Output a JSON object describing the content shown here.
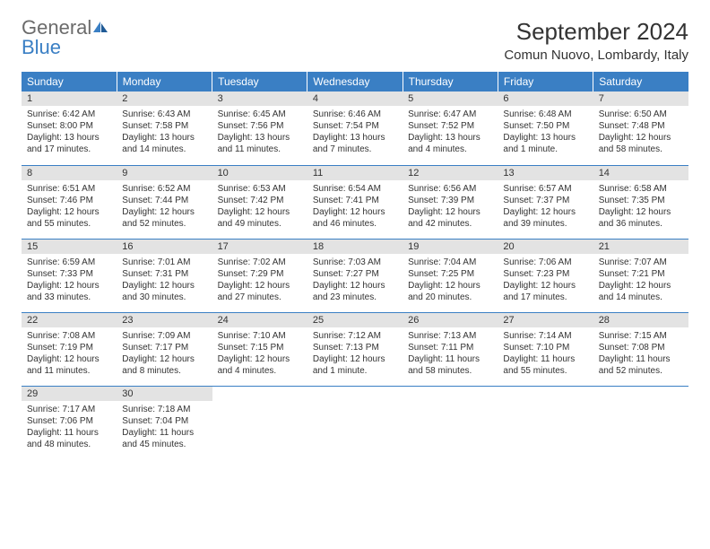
{
  "brand": {
    "general": "General",
    "blue": "Blue"
  },
  "title": "September 2024",
  "location": "Comun Nuovo, Lombardy, Italy",
  "colors": {
    "header_bg": "#3a7fc4",
    "header_text": "#ffffff",
    "daynum_bg": "#e3e3e3",
    "row_divider": "#3a7fc4",
    "body_text": "#333333",
    "logo_gray": "#6b6b6b",
    "logo_blue": "#3a7fc4",
    "page_bg": "#ffffff"
  },
  "typography": {
    "title_fontsize": 26,
    "location_fontsize": 15,
    "header_fontsize": 12,
    "daynum_fontsize": 11,
    "cell_fontsize": 10
  },
  "weekdays": [
    "Sunday",
    "Monday",
    "Tuesday",
    "Wednesday",
    "Thursday",
    "Friday",
    "Saturday"
  ],
  "weeks": [
    [
      {
        "n": "1",
        "sr": "Sunrise: 6:42 AM",
        "ss": "Sunset: 8:00 PM",
        "d1": "Daylight: 13 hours",
        "d2": "and 17 minutes."
      },
      {
        "n": "2",
        "sr": "Sunrise: 6:43 AM",
        "ss": "Sunset: 7:58 PM",
        "d1": "Daylight: 13 hours",
        "d2": "and 14 minutes."
      },
      {
        "n": "3",
        "sr": "Sunrise: 6:45 AM",
        "ss": "Sunset: 7:56 PM",
        "d1": "Daylight: 13 hours",
        "d2": "and 11 minutes."
      },
      {
        "n": "4",
        "sr": "Sunrise: 6:46 AM",
        "ss": "Sunset: 7:54 PM",
        "d1": "Daylight: 13 hours",
        "d2": "and 7 minutes."
      },
      {
        "n": "5",
        "sr": "Sunrise: 6:47 AM",
        "ss": "Sunset: 7:52 PM",
        "d1": "Daylight: 13 hours",
        "d2": "and 4 minutes."
      },
      {
        "n": "6",
        "sr": "Sunrise: 6:48 AM",
        "ss": "Sunset: 7:50 PM",
        "d1": "Daylight: 13 hours",
        "d2": "and 1 minute."
      },
      {
        "n": "7",
        "sr": "Sunrise: 6:50 AM",
        "ss": "Sunset: 7:48 PM",
        "d1": "Daylight: 12 hours",
        "d2": "and 58 minutes."
      }
    ],
    [
      {
        "n": "8",
        "sr": "Sunrise: 6:51 AM",
        "ss": "Sunset: 7:46 PM",
        "d1": "Daylight: 12 hours",
        "d2": "and 55 minutes."
      },
      {
        "n": "9",
        "sr": "Sunrise: 6:52 AM",
        "ss": "Sunset: 7:44 PM",
        "d1": "Daylight: 12 hours",
        "d2": "and 52 minutes."
      },
      {
        "n": "10",
        "sr": "Sunrise: 6:53 AM",
        "ss": "Sunset: 7:42 PM",
        "d1": "Daylight: 12 hours",
        "d2": "and 49 minutes."
      },
      {
        "n": "11",
        "sr": "Sunrise: 6:54 AM",
        "ss": "Sunset: 7:41 PM",
        "d1": "Daylight: 12 hours",
        "d2": "and 46 minutes."
      },
      {
        "n": "12",
        "sr": "Sunrise: 6:56 AM",
        "ss": "Sunset: 7:39 PM",
        "d1": "Daylight: 12 hours",
        "d2": "and 42 minutes."
      },
      {
        "n": "13",
        "sr": "Sunrise: 6:57 AM",
        "ss": "Sunset: 7:37 PM",
        "d1": "Daylight: 12 hours",
        "d2": "and 39 minutes."
      },
      {
        "n": "14",
        "sr": "Sunrise: 6:58 AM",
        "ss": "Sunset: 7:35 PM",
        "d1": "Daylight: 12 hours",
        "d2": "and 36 minutes."
      }
    ],
    [
      {
        "n": "15",
        "sr": "Sunrise: 6:59 AM",
        "ss": "Sunset: 7:33 PM",
        "d1": "Daylight: 12 hours",
        "d2": "and 33 minutes."
      },
      {
        "n": "16",
        "sr": "Sunrise: 7:01 AM",
        "ss": "Sunset: 7:31 PM",
        "d1": "Daylight: 12 hours",
        "d2": "and 30 minutes."
      },
      {
        "n": "17",
        "sr": "Sunrise: 7:02 AM",
        "ss": "Sunset: 7:29 PM",
        "d1": "Daylight: 12 hours",
        "d2": "and 27 minutes."
      },
      {
        "n": "18",
        "sr": "Sunrise: 7:03 AM",
        "ss": "Sunset: 7:27 PM",
        "d1": "Daylight: 12 hours",
        "d2": "and 23 minutes."
      },
      {
        "n": "19",
        "sr": "Sunrise: 7:04 AM",
        "ss": "Sunset: 7:25 PM",
        "d1": "Daylight: 12 hours",
        "d2": "and 20 minutes."
      },
      {
        "n": "20",
        "sr": "Sunrise: 7:06 AM",
        "ss": "Sunset: 7:23 PM",
        "d1": "Daylight: 12 hours",
        "d2": "and 17 minutes."
      },
      {
        "n": "21",
        "sr": "Sunrise: 7:07 AM",
        "ss": "Sunset: 7:21 PM",
        "d1": "Daylight: 12 hours",
        "d2": "and 14 minutes."
      }
    ],
    [
      {
        "n": "22",
        "sr": "Sunrise: 7:08 AM",
        "ss": "Sunset: 7:19 PM",
        "d1": "Daylight: 12 hours",
        "d2": "and 11 minutes."
      },
      {
        "n": "23",
        "sr": "Sunrise: 7:09 AM",
        "ss": "Sunset: 7:17 PM",
        "d1": "Daylight: 12 hours",
        "d2": "and 8 minutes."
      },
      {
        "n": "24",
        "sr": "Sunrise: 7:10 AM",
        "ss": "Sunset: 7:15 PM",
        "d1": "Daylight: 12 hours",
        "d2": "and 4 minutes."
      },
      {
        "n": "25",
        "sr": "Sunrise: 7:12 AM",
        "ss": "Sunset: 7:13 PM",
        "d1": "Daylight: 12 hours",
        "d2": "and 1 minute."
      },
      {
        "n": "26",
        "sr": "Sunrise: 7:13 AM",
        "ss": "Sunset: 7:11 PM",
        "d1": "Daylight: 11 hours",
        "d2": "and 58 minutes."
      },
      {
        "n": "27",
        "sr": "Sunrise: 7:14 AM",
        "ss": "Sunset: 7:10 PM",
        "d1": "Daylight: 11 hours",
        "d2": "and 55 minutes."
      },
      {
        "n": "28",
        "sr": "Sunrise: 7:15 AM",
        "ss": "Sunset: 7:08 PM",
        "d1": "Daylight: 11 hours",
        "d2": "and 52 minutes."
      }
    ],
    [
      {
        "n": "29",
        "sr": "Sunrise: 7:17 AM",
        "ss": "Sunset: 7:06 PM",
        "d1": "Daylight: 11 hours",
        "d2": "and 48 minutes."
      },
      {
        "n": "30",
        "sr": "Sunrise: 7:18 AM",
        "ss": "Sunset: 7:04 PM",
        "d1": "Daylight: 11 hours",
        "d2": "and 45 minutes."
      },
      null,
      null,
      null,
      null,
      null
    ]
  ]
}
